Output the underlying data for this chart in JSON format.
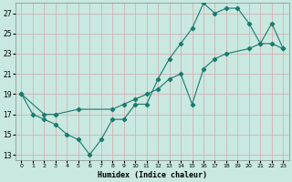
{
  "xlabel": "Humidex (Indice chaleur)",
  "xlim": [
    -0.5,
    23.5
  ],
  "ylim": [
    12.5,
    28
  ],
  "xticks": [
    0,
    1,
    2,
    3,
    4,
    5,
    6,
    7,
    8,
    9,
    10,
    11,
    12,
    13,
    14,
    15,
    16,
    17,
    18,
    19,
    20,
    21,
    22,
    23
  ],
  "yticks": [
    13,
    15,
    17,
    19,
    21,
    23,
    25,
    27
  ],
  "bg_color": "#c8e8e0",
  "grid_color": "#d4a8b0",
  "line_color": "#1a7a6e",
  "series1_x": [
    0,
    1,
    2,
    3,
    4,
    5,
    6,
    7,
    8,
    9,
    10,
    11,
    12,
    13,
    14,
    15,
    16,
    17,
    18,
    19,
    20,
    21,
    22,
    23
  ],
  "series1_y": [
    19,
    17,
    16.5,
    16,
    15,
    14.5,
    13,
    14.5,
    16.5,
    16.5,
    18,
    18,
    20.5,
    22.5,
    24,
    25.5,
    28,
    27,
    27.5,
    27.5,
    26,
    24,
    24,
    23.5
  ],
  "series2_x": [
    0,
    2,
    3,
    5,
    8,
    9,
    10,
    11,
    12,
    13,
    14,
    15,
    16,
    17,
    18,
    20,
    21,
    22,
    23
  ],
  "series2_y": [
    19,
    17,
    17,
    17.5,
    17.5,
    18,
    18.5,
    19,
    19.5,
    20.5,
    21,
    18,
    21.5,
    22.5,
    23,
    23.5,
    24,
    26,
    23.5
  ]
}
